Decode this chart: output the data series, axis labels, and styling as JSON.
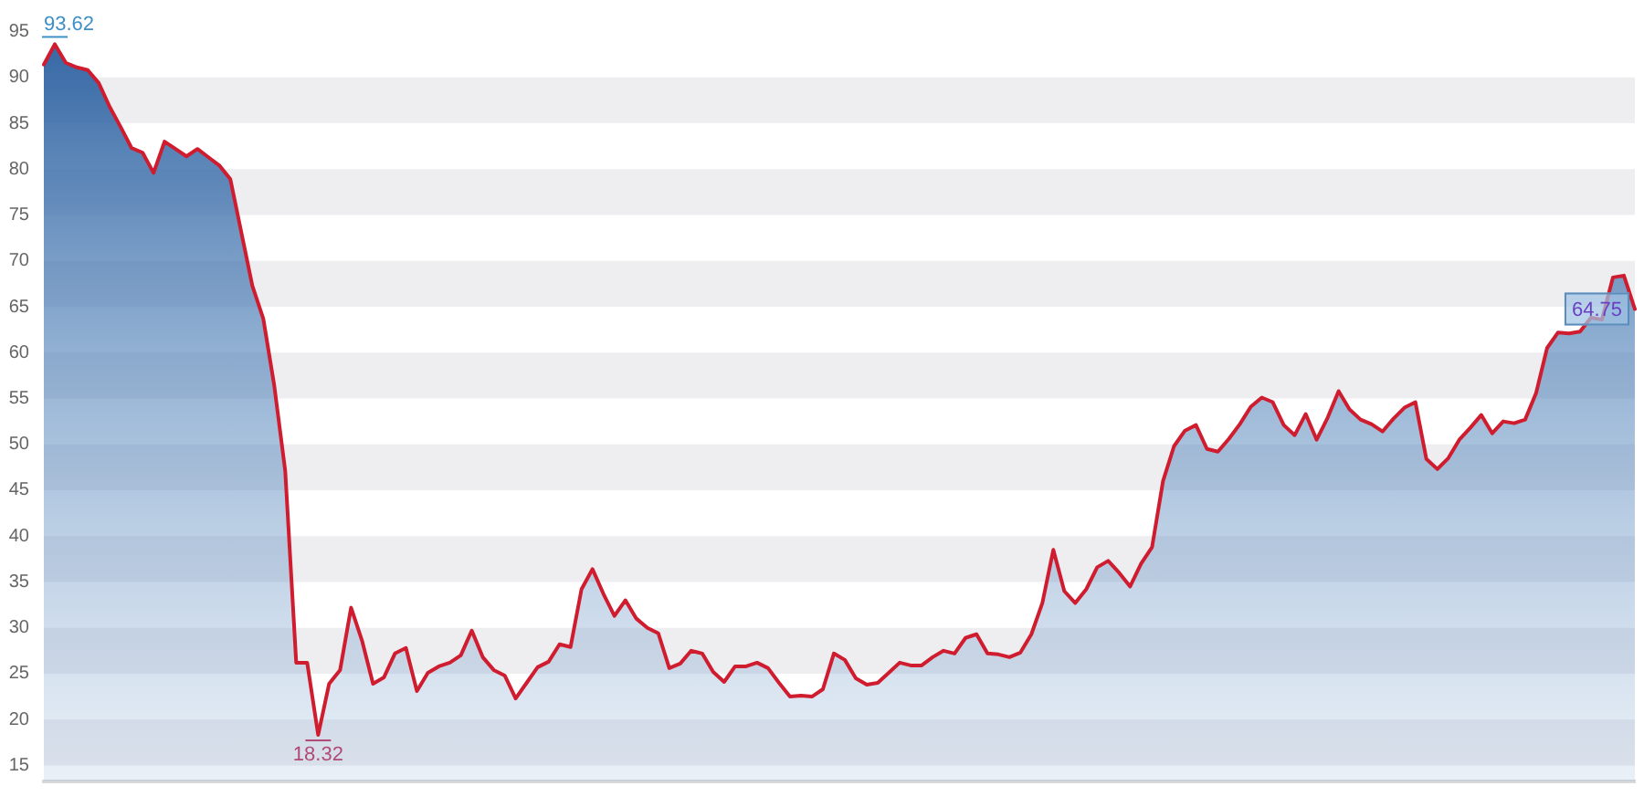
{
  "chart_data": {
    "type": "area",
    "color": "#d01c2f",
    "categories": [
      null,
      null,
      null,
      null,
      null,
      null,
      null,
      null,
      null,
      null,
      null,
      null,
      null,
      null,
      null,
      null,
      null,
      null,
      null,
      null,
      null,
      null,
      null,
      null,
      null,
      null,
      null,
      null,
      null,
      null,
      null,
      null,
      null,
      null,
      null,
      null,
      null,
      null,
      null,
      null,
      null,
      null,
      null,
      null,
      null,
      null,
      null,
      null,
      null,
      null,
      null,
      null,
      null,
      null,
      null,
      null,
      null,
      null,
      null,
      null,
      null,
      null,
      null,
      null,
      null,
      null,
      null,
      null,
      null,
      null,
      null,
      null,
      null,
      null,
      null,
      null,
      null,
      null,
      null,
      null,
      null,
      null,
      null,
      null,
      null,
      null,
      null,
      null,
      null,
      null,
      null,
      null,
      null,
      null,
      null,
      null,
      null,
      null,
      null,
      null,
      null,
      null,
      null,
      null,
      null,
      null,
      null,
      null,
      null,
      null,
      null,
      null,
      null,
      null,
      null,
      null,
      null,
      null,
      null,
      null,
      null,
      null,
      null,
      null,
      null,
      null,
      null,
      null,
      null,
      null,
      null,
      null,
      null,
      null,
      null,
      null,
      null,
      null,
      null,
      null,
      null,
      null,
      null,
      null,
      null,
      null
    ],
    "values": [
      91.4,
      93.62,
      91.6,
      91.1,
      90.8,
      89.4,
      86.8,
      84.6,
      82.3,
      81.8,
      79.6,
      83.0,
      82.2,
      81.4,
      82.2,
      81.3,
      80.4,
      78.9,
      73.1,
      67.3,
      63.7,
      56.4,
      47.1,
      26.2,
      26.2,
      18.32,
      23.9,
      25.4,
      32.2,
      28.6,
      23.9,
      24.6,
      27.2,
      27.8,
      23.1,
      25.1,
      25.8,
      26.2,
      27.0,
      29.7,
      26.8,
      25.4,
      24.8,
      22.3,
      24.0,
      25.7,
      26.3,
      28.2,
      27.9,
      34.2,
      36.4,
      33.7,
      31.3,
      33.0,
      31.0,
      30.0,
      29.4,
      25.6,
      26.1,
      27.5,
      27.2,
      25.2,
      24.1,
      25.8,
      25.8,
      26.2,
      25.6,
      24.0,
      22.5,
      22.6,
      22.5,
      23.3,
      27.2,
      26.5,
      24.5,
      23.8,
      24.0,
      25.1,
      26.2,
      25.9,
      25.9,
      26.8,
      27.5,
      27.2,
      28.9,
      29.3,
      27.2,
      27.1,
      26.8,
      27.3,
      29.3,
      32.7,
      38.5,
      34.0,
      32.7,
      34.2,
      36.6,
      37.3,
      36.0,
      34.5,
      37.0,
      38.8,
      46.0,
      49.8,
      51.5,
      52.1,
      49.5,
      49.2,
      50.6,
      52.2,
      54.1,
      55.1,
      54.6,
      52.1,
      51.0,
      53.3,
      50.5,
      52.9,
      55.8,
      53.8,
      52.7,
      52.2,
      51.4,
      52.8,
      54.0,
      54.6,
      48.4,
      47.3,
      48.5,
      50.5,
      51.8,
      53.2,
      51.2,
      52.5,
      52.3,
      52.7,
      55.6,
      60.5,
      62.2,
      62.1,
      62.3,
      63.8,
      63.6,
      68.2,
      68.4,
      64.75
    ],
    "value_labels": [
      null,
      "93.62",
      null,
      null,
      null,
      null,
      null,
      null,
      null,
      null,
      null,
      null,
      null,
      null,
      null,
      null,
      null,
      null,
      null,
      null,
      null,
      null,
      null,
      null,
      null,
      "18.32",
      null,
      null,
      null,
      null,
      null,
      null,
      null,
      null,
      null,
      null,
      null,
      null,
      null,
      null,
      null,
      null,
      null,
      null,
      null,
      null,
      null,
      null,
      null,
      null,
      null,
      null,
      null,
      null,
      null,
      null,
      null,
      null,
      null,
      null,
      null,
      null,
      null,
      null,
      null,
      null,
      null,
      null,
      null,
      null,
      null,
      null,
      null,
      null,
      null,
      null,
      null,
      null,
      null,
      null,
      null,
      null,
      null,
      null,
      null,
      null,
      null,
      null,
      null,
      null,
      null,
      null,
      null,
      null,
      null,
      null,
      null,
      null,
      null,
      null,
      null,
      null,
      null,
      null,
      null,
      null,
      null,
      null,
      null,
      null,
      null,
      null,
      null,
      null,
      null,
      null,
      null,
      null,
      null,
      null,
      null,
      null,
      null,
      null,
      null,
      null,
      null,
      null,
      null,
      null,
      null,
      null,
      null,
      null,
      null,
      null,
      null,
      null,
      null,
      null,
      null,
      null,
      null,
      null,
      null,
      "64.75"
    ],
    "ylim": [
      13.25,
      95
    ],
    "yticks": [
      15,
      20,
      25,
      30,
      35,
      40,
      45,
      50,
      55,
      60,
      65,
      70,
      75,
      80,
      85,
      90,
      95
    ],
    "bands": [
      {
        "axis": "y",
        "from": 15,
        "to": 20,
        "color": "#eeeef1"
      },
      {
        "axis": "y",
        "from": 25,
        "to": 30,
        "color": "#eeeef1"
      },
      {
        "axis": "y",
        "from": 35,
        "to": 40,
        "color": "#eeeef1"
      },
      {
        "axis": "y",
        "from": 45,
        "to": 50,
        "color": "#eeeef1"
      },
      {
        "axis": "y",
        "from": 55,
        "to": 60,
        "color": "#eeeef1"
      },
      {
        "axis": "y",
        "from": 65,
        "to": 70,
        "color": "#eeeef1"
      },
      {
        "axis": "y",
        "from": 75,
        "to": 80,
        "color": "#eeeef1"
      },
      {
        "axis": "y",
        "from": 85,
        "to": 90,
        "color": "#eeeef1"
      }
    ],
    "tick_labels": "y"
  }
}
